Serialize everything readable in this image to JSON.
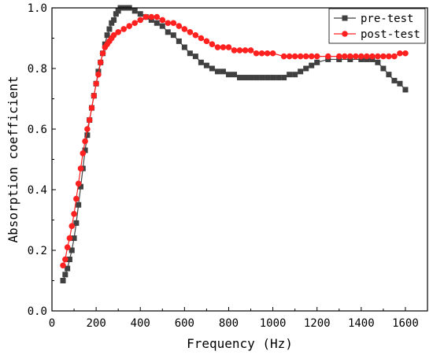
{
  "chart_data": {
    "type": "line",
    "title": "",
    "xlabel": "Frequency (Hz)",
    "ylabel": "Absorption coefficient",
    "xlim": [
      0,
      1700
    ],
    "ylim": [
      0,
      1.0
    ],
    "xticks": [
      0,
      200,
      400,
      600,
      800,
      1000,
      1200,
      1400,
      1600
    ],
    "yticks": [
      0.0,
      0.2,
      0.4,
      0.6,
      0.8,
      1.0
    ],
    "xtick_labels": [
      "0",
      "200",
      "400",
      "600",
      "800",
      "1000",
      "1200",
      "1400",
      "1600"
    ],
    "ytick_labels": [
      "0.0",
      "0.2",
      "0.4",
      "0.6",
      "0.8",
      "1.0"
    ],
    "grid": false,
    "legend_position": "top-right",
    "series": [
      {
        "name": "pre-test",
        "color": "#404040",
        "marker": "square",
        "x": [
          50,
          60,
          70,
          80,
          90,
          100,
          110,
          120,
          130,
          140,
          150,
          160,
          170,
          180,
          190,
          200,
          210,
          220,
          230,
          240,
          250,
          260,
          270,
          280,
          290,
          300,
          310,
          320,
          330,
          340,
          350,
          375,
          400,
          425,
          450,
          475,
          500,
          525,
          550,
          575,
          600,
          625,
          650,
          675,
          700,
          725,
          750,
          775,
          800,
          825,
          850,
          875,
          900,
          925,
          950,
          975,
          1000,
          1025,
          1050,
          1075,
          1100,
          1125,
          1150,
          1175,
          1200,
          1250,
          1300,
          1350,
          1400,
          1425,
          1450,
          1475,
          1500,
          1525,
          1550,
          1575,
          1600
        ],
        "y": [
          0.1,
          0.12,
          0.14,
          0.17,
          0.2,
          0.24,
          0.29,
          0.35,
          0.41,
          0.47,
          0.53,
          0.58,
          0.63,
          0.67,
          0.71,
          0.75,
          0.79,
          0.82,
          0.85,
          0.88,
          0.91,
          0.93,
          0.95,
          0.96,
          0.98,
          0.99,
          1.0,
          1.0,
          1.0,
          1.0,
          1.0,
          0.99,
          0.98,
          0.97,
          0.96,
          0.95,
          0.94,
          0.92,
          0.91,
          0.89,
          0.87,
          0.85,
          0.84,
          0.82,
          0.81,
          0.8,
          0.79,
          0.79,
          0.78,
          0.78,
          0.77,
          0.77,
          0.77,
          0.77,
          0.77,
          0.77,
          0.77,
          0.77,
          0.77,
          0.78,
          0.78,
          0.79,
          0.8,
          0.81,
          0.82,
          0.83,
          0.83,
          0.83,
          0.83,
          0.83,
          0.83,
          0.82,
          0.8,
          0.78,
          0.76,
          0.75,
          0.73
        ]
      },
      {
        "name": "post-test",
        "color": "#ff2020",
        "marker": "circle",
        "x": [
          50,
          60,
          70,
          80,
          90,
          100,
          110,
          120,
          130,
          140,
          150,
          160,
          170,
          180,
          190,
          200,
          210,
          220,
          230,
          240,
          250,
          260,
          270,
          280,
          300,
          325,
          350,
          375,
          400,
          425,
          450,
          475,
          500,
          525,
          550,
          575,
          600,
          625,
          650,
          675,
          700,
          725,
          750,
          775,
          800,
          825,
          850,
          875,
          900,
          925,
          950,
          975,
          1000,
          1050,
          1075,
          1100,
          1125,
          1150,
          1175,
          1200,
          1250,
          1300,
          1325,
          1350,
          1375,
          1400,
          1425,
          1450,
          1475,
          1500,
          1525,
          1550,
          1575,
          1600
        ],
        "y": [
          0.15,
          0.17,
          0.21,
          0.24,
          0.28,
          0.32,
          0.37,
          0.42,
          0.47,
          0.52,
          0.56,
          0.6,
          0.63,
          0.67,
          0.71,
          0.75,
          0.78,
          0.82,
          0.85,
          0.87,
          0.88,
          0.89,
          0.9,
          0.91,
          0.92,
          0.93,
          0.94,
          0.95,
          0.96,
          0.97,
          0.97,
          0.97,
          0.96,
          0.95,
          0.95,
          0.94,
          0.93,
          0.92,
          0.91,
          0.9,
          0.89,
          0.88,
          0.87,
          0.87,
          0.87,
          0.86,
          0.86,
          0.86,
          0.86,
          0.85,
          0.85,
          0.85,
          0.85,
          0.84,
          0.84,
          0.84,
          0.84,
          0.84,
          0.84,
          0.84,
          0.84,
          0.84,
          0.84,
          0.84,
          0.84,
          0.84,
          0.84,
          0.84,
          0.84,
          0.84,
          0.84,
          0.84,
          0.85,
          0.85
        ]
      }
    ]
  }
}
